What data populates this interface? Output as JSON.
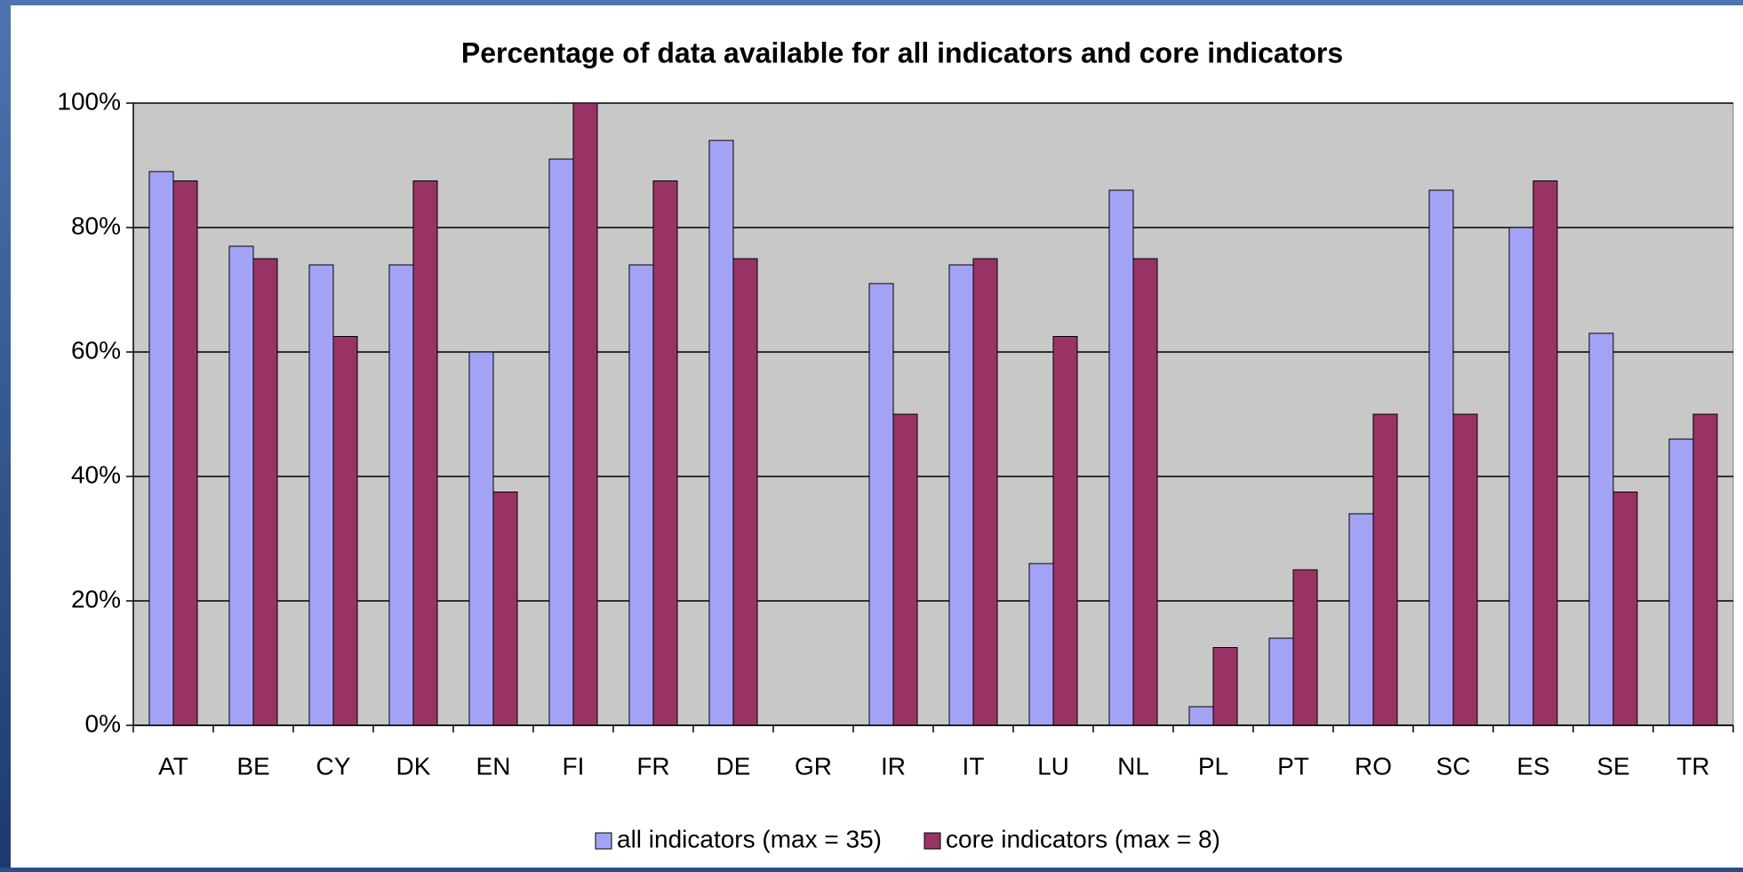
{
  "chart_data": {
    "type": "bar",
    "title": "Percentage of data available for all indicators and core indicators",
    "categories": [
      "AT",
      "BE",
      "CY",
      "DK",
      "EN",
      "FI",
      "FR",
      "DE",
      "GR",
      "IR",
      "IT",
      "LU",
      "NL",
      "PL",
      "PT",
      "RO",
      "SC",
      "ES",
      "SE",
      "TR"
    ],
    "series": [
      {
        "name": "all indicators (max = 35)",
        "color": "#a3a3f5",
        "values": [
          89,
          77,
          74,
          74,
          60,
          91,
          74,
          94,
          0,
          71,
          74,
          26,
          86,
          3,
          14,
          34,
          86,
          80,
          63,
          46
        ]
      },
      {
        "name": "core indicators (max = 8)",
        "color": "#993366",
        "values": [
          87.5,
          75,
          62.5,
          87.5,
          37.5,
          100,
          87.5,
          75,
          0,
          50,
          75,
          62.5,
          75,
          12.5,
          25,
          50,
          50,
          87.5,
          37.5,
          50
        ]
      }
    ],
    "ylim": [
      0,
      100
    ],
    "yticks": [
      {
        "value": 0,
        "label": "0%"
      },
      {
        "value": 20,
        "label": "20%"
      },
      {
        "value": 40,
        "label": "40%"
      },
      {
        "value": 60,
        "label": "60%"
      },
      {
        "value": 80,
        "label": "80%"
      },
      {
        "value": 100,
        "label": "100%"
      }
    ],
    "grid": true,
    "legend": "bottom"
  }
}
